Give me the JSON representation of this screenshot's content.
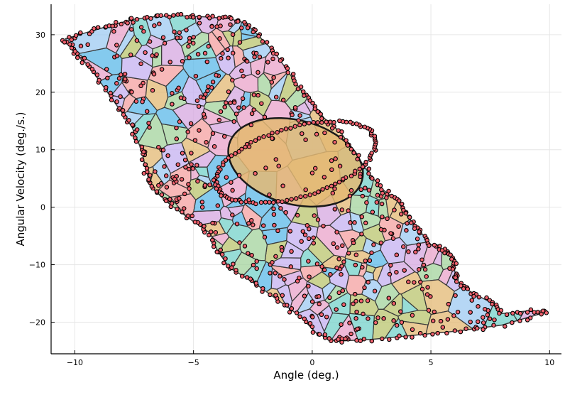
{
  "chart_data": {
    "type": "scatter",
    "title": "",
    "xlabel": "Angle (deg.)",
    "ylabel": "Angular Velocity (deg./s.)",
    "xlim": [
      -11,
      10.5
    ],
    "ylim": [
      -25.5,
      35.3
    ],
    "xticks": [
      -10,
      -5,
      0,
      5,
      10
    ],
    "xtick_labels": [
      "−10",
      "−5",
      "0",
      "5",
      "10"
    ],
    "yticks": [
      -20,
      -10,
      0,
      10,
      20,
      30
    ],
    "ytick_labels": [
      "−20",
      "−10",
      "0",
      "10",
      "20",
      "30"
    ],
    "grid": true,
    "legend": "none",
    "colors": {
      "points": "#f0626e",
      "point_edge": "#000000",
      "cell_edge": "#3a3a3a",
      "cells": [
        "#5bb8e8",
        "#e9a3c9",
        "#a3d39c",
        "#c4b0f0",
        "#b9c46d",
        "#f4a0a0",
        "#74d2c9",
        "#e3b873",
        "#9ec9f2",
        "#d6a7e0"
      ]
    },
    "region_boundary": [
      [
        -10.4,
        29.3
      ],
      [
        -9.5,
        30.4
      ],
      [
        -8.5,
        31.6
      ],
      [
        -7.5,
        32.7
      ],
      [
        -6.5,
        33.2
      ],
      [
        -5.5,
        33.3
      ],
      [
        -4.5,
        33.1
      ],
      [
        -3.5,
        32.8
      ],
      [
        -2.8,
        32.0
      ],
      [
        -2.3,
        30.0
      ],
      [
        -1.6,
        27.0
      ],
      [
        -1.0,
        23.5
      ],
      [
        -0.5,
        20.5
      ],
      [
        0.0,
        18.2
      ],
      [
        0.5,
        15.5
      ],
      [
        1.2,
        13.0
      ],
      [
        1.8,
        9.5
      ],
      [
        2.4,
        5.8
      ],
      [
        3.0,
        3.0
      ],
      [
        3.6,
        1.0
      ],
      [
        4.0,
        -1.5
      ],
      [
        4.5,
        -4.0
      ],
      [
        5.0,
        -6.5
      ],
      [
        5.6,
        -7.5
      ],
      [
        6.0,
        -9.0
      ],
      [
        6.0,
        -11.0
      ],
      [
        6.1,
        -13.0
      ],
      [
        6.7,
        -14.8
      ],
      [
        7.5,
        -16.5
      ],
      [
        8.0,
        -18.5
      ],
      [
        9.2,
        -18.0
      ],
      [
        9.9,
        -18.2
      ],
      [
        8.0,
        -20.5
      ],
      [
        6.2,
        -21.5
      ],
      [
        4.5,
        -22.2
      ],
      [
        2.5,
        -23.0
      ],
      [
        1.0,
        -23.3
      ],
      [
        0.2,
        -22.0
      ],
      [
        -0.5,
        -19.0
      ],
      [
        -1.5,
        -16.0
      ],
      [
        -2.5,
        -13.0
      ],
      [
        -3.5,
        -10.5
      ],
      [
        -4.0,
        -7.5
      ],
      [
        -4.3,
        -4.5
      ],
      [
        -5.0,
        -2.5
      ],
      [
        -6.0,
        0.5
      ],
      [
        -6.8,
        3.5
      ],
      [
        -7.0,
        6.5
      ],
      [
        -7.2,
        10.0
      ],
      [
        -7.6,
        14.0
      ],
      [
        -8.2,
        17.5
      ],
      [
        -8.8,
        21.0
      ],
      [
        -9.4,
        24.5
      ],
      [
        -10.0,
        27.0
      ]
    ],
    "ellipse": {
      "cx": -0.7,
      "cy": 7.8,
      "rx": 2.9,
      "ry": 7.3,
      "rotation_deg": -15,
      "fill": "#e3b873"
    },
    "point_count": 900
  }
}
